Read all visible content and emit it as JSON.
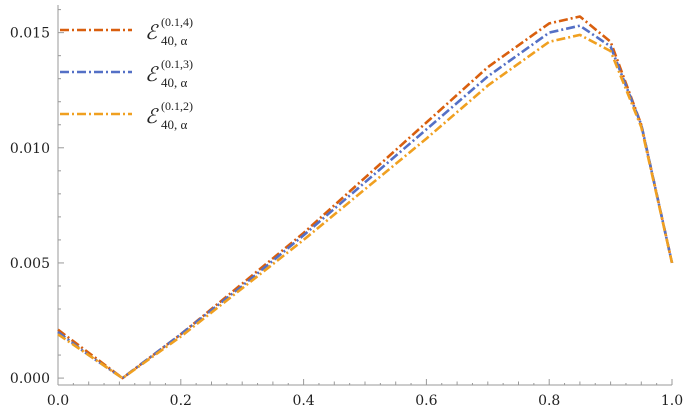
{
  "chart_data": {
    "type": "line",
    "xlim": [
      0.0,
      1.0
    ],
    "ylim": [
      -0.0003,
      0.0162
    ],
    "x_ticks": [
      {
        "value": 0.0,
        "label": "0.0"
      },
      {
        "value": 0.2,
        "label": "0.2"
      },
      {
        "value": 0.4,
        "label": "0.4"
      },
      {
        "value": 0.6,
        "label": "0.6"
      },
      {
        "value": 0.8,
        "label": "0.8"
      },
      {
        "value": 1.0,
        "label": "1.0"
      }
    ],
    "y_ticks": [
      {
        "value": 0.0,
        "label": "0.000"
      },
      {
        "value": 0.005,
        "label": "0.005"
      },
      {
        "value": 0.01,
        "label": "0.010"
      },
      {
        "value": 0.015,
        "label": "0.015"
      }
    ],
    "grid": false,
    "legend_position": "top-left",
    "series": [
      {
        "name": "E40,α(0.1,4)",
        "legend": {
          "main": "ℰ",
          "sup": "(0.1,4)",
          "sub": "40, α"
        },
        "color": "#D95F0E",
        "dash": "dash-dot",
        "x": [
          0.0,
          0.05,
          0.105,
          0.2,
          0.3,
          0.4,
          0.5,
          0.6,
          0.7,
          0.8,
          0.85,
          0.9,
          0.95,
          1.0
        ],
        "y": [
          0.0021,
          0.0011,
          0.0,
          0.0019,
          0.0041,
          0.0063,
          0.0087,
          0.0111,
          0.0135,
          0.0154,
          0.0157,
          0.0146,
          0.011,
          0.005
        ]
      },
      {
        "name": "E40,α(0.1,3)",
        "legend": {
          "main": "ℰ",
          "sup": "(0.1,3)",
          "sub": "40, α"
        },
        "color": "#5470C6",
        "dash": "dash-dot",
        "x": [
          0.0,
          0.05,
          0.105,
          0.2,
          0.3,
          0.4,
          0.5,
          0.6,
          0.7,
          0.8,
          0.85,
          0.9,
          0.95,
          1.0
        ],
        "y": [
          0.002,
          0.001,
          0.0,
          0.0019,
          0.004,
          0.0062,
          0.0085,
          0.0108,
          0.0131,
          0.015,
          0.0153,
          0.0144,
          0.011,
          0.005
        ]
      },
      {
        "name": "E40,α(0.1,2)",
        "legend": {
          "main": "ℰ",
          "sup": "(0.1,2)",
          "sub": "40, α"
        },
        "color": "#F0A020",
        "dash": "dash-dot",
        "x": [
          0.0,
          0.05,
          0.105,
          0.2,
          0.3,
          0.4,
          0.5,
          0.6,
          0.7,
          0.8,
          0.85,
          0.9,
          0.95,
          1.0
        ],
        "y": [
          0.0019,
          0.001,
          0.0,
          0.0018,
          0.0039,
          0.006,
          0.0082,
          0.0104,
          0.0127,
          0.0146,
          0.0149,
          0.0142,
          0.0109,
          0.005
        ]
      }
    ]
  }
}
